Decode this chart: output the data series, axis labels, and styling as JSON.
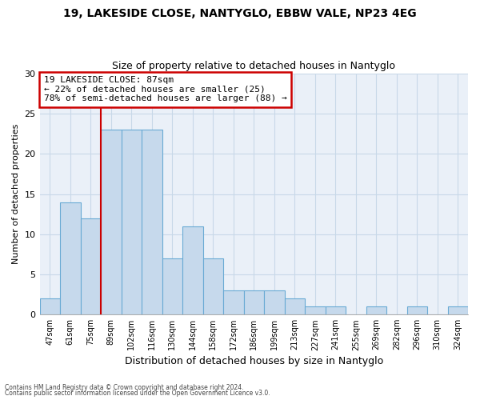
{
  "title1": "19, LAKESIDE CLOSE, NANTYGLO, EBBW VALE, NP23 4EG",
  "title2": "Size of property relative to detached houses in Nantyglo",
  "xlabel": "Distribution of detached houses by size in Nantyglo",
  "ylabel": "Number of detached properties",
  "bar_labels": [
    "47sqm",
    "61sqm",
    "75sqm",
    "89sqm",
    "102sqm",
    "116sqm",
    "130sqm",
    "144sqm",
    "158sqm",
    "172sqm",
    "186sqm",
    "199sqm",
    "213sqm",
    "227sqm",
    "241sqm",
    "255sqm",
    "269sqm",
    "282sqm",
    "296sqm",
    "310sqm",
    "324sqm"
  ],
  "bar_values": [
    2,
    14,
    12,
    23,
    23,
    23,
    7,
    11,
    7,
    3,
    3,
    3,
    2,
    1,
    1,
    0,
    1,
    0,
    1,
    0,
    1
  ],
  "bar_color": "#c6d9ec",
  "bar_edgecolor": "#6aaad4",
  "vline_index": 3,
  "annotation_text": "19 LAKESIDE CLOSE: 87sqm\n← 22% of detached houses are smaller (25)\n78% of semi-detached houses are larger (88) →",
  "annotation_box_color": "#ffffff",
  "annotation_border_color": "#cc0000",
  "vline_color": "#cc0000",
  "grid_color": "#c8d8e8",
  "background_color": "#eaf0f8",
  "ylim": [
    0,
    30
  ],
  "yticks": [
    0,
    5,
    10,
    15,
    20,
    25,
    30
  ],
  "footnote1": "Contains HM Land Registry data © Crown copyright and database right 2024.",
  "footnote2": "Contains public sector information licensed under the Open Government Licence v3.0."
}
